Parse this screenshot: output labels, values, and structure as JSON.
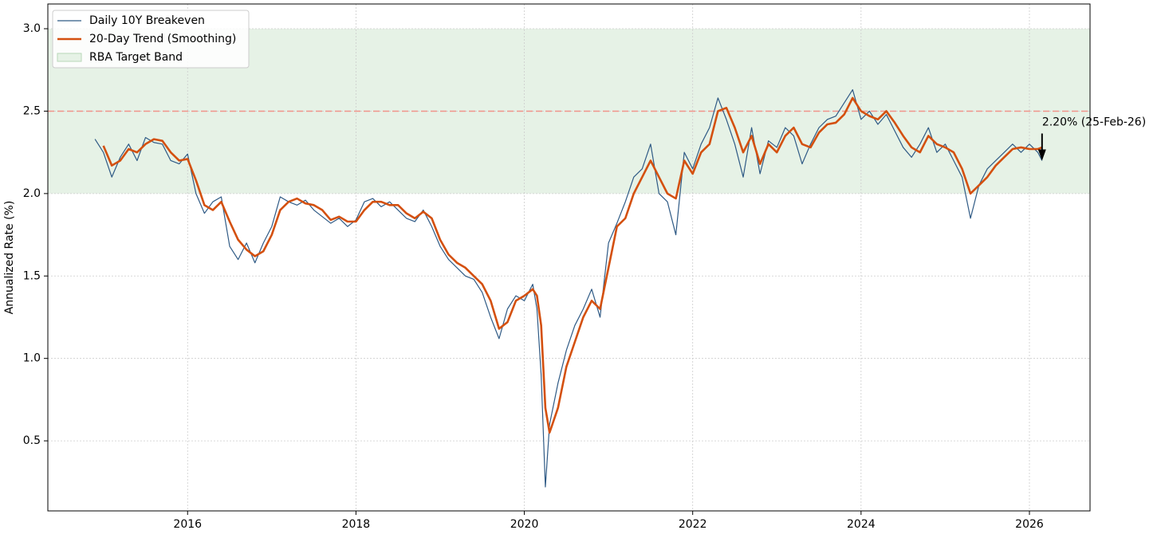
{
  "chart_data": {
    "type": "line",
    "y_label": "Annualized Rate (%)",
    "xlim": [
      2014.34,
      2026.72
    ],
    "xticks": [
      2016,
      2018,
      2020,
      2022,
      2024,
      2026
    ],
    "ylim": [
      0.075,
      3.15
    ],
    "yticks": [
      0.5,
      {
        "value": 1,
        "label": "1.0"
      },
      1.5,
      {
        "value": 2,
        "label": "2.0"
      },
      2.5,
      {
        "value": 3,
        "label": "3.0"
      }
    ],
    "grid": true,
    "legend": "upper left",
    "x": [
      2014.9,
      2015.0,
      2015.1,
      2015.2,
      2015.3,
      2015.4,
      2015.5,
      2015.6,
      2015.7,
      2015.8,
      2015.9,
      2016.0,
      2016.1,
      2016.2,
      2016.3,
      2016.4,
      2016.5,
      2016.6,
      2016.7,
      2016.8,
      2016.9,
      2017.0,
      2017.1,
      2017.2,
      2017.3,
      2017.4,
      2017.5,
      2017.6,
      2017.7,
      2017.8,
      2017.9,
      2018.0,
      2018.1,
      2018.2,
      2018.3,
      2018.4,
      2018.5,
      2018.6,
      2018.7,
      2018.8,
      2018.9,
      2019.0,
      2019.1,
      2019.2,
      2019.3,
      2019.4,
      2019.5,
      2019.6,
      2019.7,
      2019.8,
      2019.9,
      2020.0,
      2020.1,
      2020.15,
      2020.2,
      2020.25,
      2020.3,
      2020.4,
      2020.5,
      2020.6,
      2020.7,
      2020.8,
      2020.9,
      2021.0,
      2021.1,
      2021.2,
      2021.3,
      2021.4,
      2021.5,
      2021.6,
      2021.7,
      2021.8,
      2021.9,
      2022.0,
      2022.1,
      2022.2,
      2022.3,
      2022.4,
      2022.5,
      2022.6,
      2022.7,
      2022.8,
      2022.9,
      2023.0,
      2023.1,
      2023.2,
      2023.3,
      2023.4,
      2023.5,
      2023.6,
      2023.7,
      2023.8,
      2023.9,
      2024.0,
      2024.1,
      2024.2,
      2024.3,
      2024.4,
      2024.5,
      2024.6,
      2024.7,
      2024.8,
      2024.9,
      2025.0,
      2025.1,
      2025.2,
      2025.3,
      2025.4,
      2025.5,
      2025.6,
      2025.7,
      2025.8,
      2025.9,
      2026.0,
      2026.1,
      2026.15
    ],
    "series": [
      {
        "name": "Daily 10Y Breakeven",
        "color": "#2f5a85",
        "width": 1.2,
        "values": [
          2.33,
          2.25,
          2.1,
          2.22,
          2.3,
          2.2,
          2.34,
          2.31,
          2.3,
          2.2,
          2.18,
          2.24,
          2.0,
          1.88,
          1.95,
          1.98,
          1.68,
          1.6,
          1.7,
          1.58,
          1.7,
          1.8,
          1.98,
          1.95,
          1.93,
          1.96,
          1.9,
          1.86,
          1.82,
          1.85,
          1.8,
          1.84,
          1.95,
          1.97,
          1.92,
          1.95,
          1.9,
          1.85,
          1.83,
          1.9,
          1.8,
          1.68,
          1.6,
          1.55,
          1.5,
          1.48,
          1.4,
          1.25,
          1.12,
          1.3,
          1.38,
          1.35,
          1.45,
          1.3,
          0.9,
          0.22,
          0.6,
          0.85,
          1.05,
          1.2,
          1.3,
          1.42,
          1.25,
          1.7,
          1.82,
          1.95,
          2.1,
          2.15,
          2.3,
          2.0,
          1.95,
          1.75,
          2.25,
          2.15,
          2.3,
          2.4,
          2.58,
          2.45,
          2.3,
          2.1,
          2.4,
          2.12,
          2.32,
          2.28,
          2.4,
          2.35,
          2.18,
          2.3,
          2.4,
          2.45,
          2.47,
          2.55,
          2.63,
          2.45,
          2.5,
          2.42,
          2.48,
          2.38,
          2.28,
          2.22,
          2.3,
          2.4,
          2.25,
          2.3,
          2.2,
          2.1,
          1.85,
          2.05,
          2.15,
          2.2,
          2.25,
          2.3,
          2.25,
          2.3,
          2.25,
          2.2
        ]
      },
      {
        "name": "20-Day Trend (Smoothing)",
        "color": "#d4500f",
        "width": 2.6,
        "values": [
          null,
          2.29,
          2.17,
          2.2,
          2.27,
          2.25,
          2.3,
          2.33,
          2.32,
          2.25,
          2.2,
          2.21,
          2.08,
          1.93,
          1.9,
          1.95,
          1.83,
          1.72,
          1.66,
          1.62,
          1.65,
          1.75,
          1.9,
          1.95,
          1.97,
          1.94,
          1.93,
          1.9,
          1.84,
          1.86,
          1.83,
          1.83,
          1.9,
          1.95,
          1.95,
          1.93,
          1.93,
          1.88,
          1.85,
          1.89,
          1.85,
          1.72,
          1.63,
          1.58,
          1.55,
          1.5,
          1.45,
          1.35,
          1.18,
          1.22,
          1.35,
          1.38,
          1.42,
          1.38,
          1.2,
          0.7,
          0.55,
          0.7,
          0.95,
          1.1,
          1.25,
          1.35,
          1.3,
          1.55,
          1.8,
          1.85,
          2.0,
          2.1,
          2.2,
          2.1,
          2.0,
          1.97,
          2.2,
          2.12,
          2.25,
          2.3,
          2.5,
          2.52,
          2.4,
          2.25,
          2.35,
          2.18,
          2.3,
          2.25,
          2.35,
          2.4,
          2.3,
          2.28,
          2.37,
          2.42,
          2.43,
          2.48,
          2.58,
          2.5,
          2.47,
          2.45,
          2.5,
          2.43,
          2.35,
          2.28,
          2.25,
          2.35,
          2.3,
          2.28,
          2.25,
          2.15,
          2.0,
          2.05,
          2.1,
          2.17,
          2.22,
          2.27,
          2.28,
          2.27,
          2.27,
          2.28
        ]
      }
    ],
    "bands": [
      {
        "name": "RBA Target Band",
        "from": 2,
        "to": 3,
        "color": "#e6f2e6"
      }
    ],
    "reference_lines": [
      {
        "y": 2.5,
        "color": "#f0948a"
      }
    ],
    "annotations": [
      {
        "text": "2.20% (25-Feb-26)",
        "x": 2026.15,
        "y": 2.2
      }
    ]
  }
}
